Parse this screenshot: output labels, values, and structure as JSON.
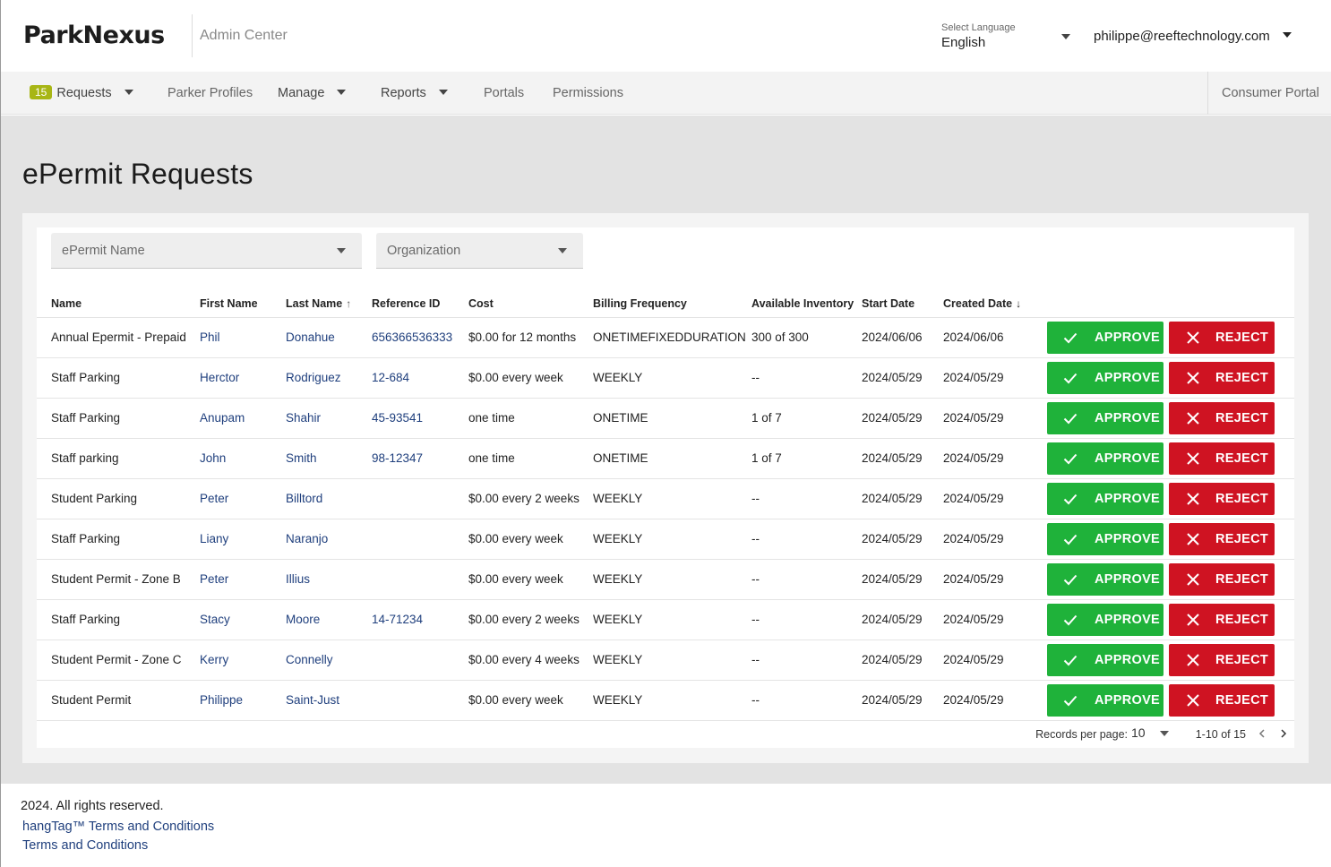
{
  "header": {
    "brand": "ParkNexus",
    "app_name": "Admin Center",
    "language_caption": "Select Language",
    "language_value": "English",
    "user_email": "philippe@reeftechnology.com"
  },
  "nav": {
    "requests_badge": "15",
    "requests": "Requests",
    "parker_profiles": "Parker Profiles",
    "manage": "Manage",
    "reports": "Reports",
    "portals": "Portals",
    "permissions": "Permissions",
    "consumer_portal": "Consumer Portal"
  },
  "page": {
    "title": "ePermit Requests"
  },
  "filters": {
    "epermit_name": "ePermit Name",
    "organization": "Organization"
  },
  "table": {
    "headers": [
      "Name",
      "First Name",
      "Last Name",
      "Reference ID",
      "Cost",
      "Billing Frequency",
      "Available Inventory",
      "Start Date",
      "Created Date"
    ],
    "approve_label": "APPROVE",
    "reject_label": "REJECT",
    "rows": [
      [
        "Annual Epermit - Prepaid",
        "Phil",
        "Donahue",
        "656366536333",
        "$0.00 for 12 months",
        "ONETIMEFIXEDDURATION",
        "300 of 300",
        "2024/06/06",
        "2024/06/06"
      ],
      [
        "Staff Parking",
        "Herctor",
        "Rodriguez",
        "12-684",
        "$0.00 every week",
        "WEEKLY",
        "--",
        "2024/05/29",
        "2024/05/29"
      ],
      [
        "Staff Parking",
        "Anupam",
        "Shahir",
        "45-93541",
        "one time",
        "ONETIME",
        "1 of 7",
        "2024/05/29",
        "2024/05/29"
      ],
      [
        "Staff parking",
        "John",
        "Smith",
        "98-12347",
        "one time",
        "ONETIME",
        "1 of 7",
        "2024/05/29",
        "2024/05/29"
      ],
      [
        "Student Parking",
        "Peter",
        "Billtord",
        "",
        "$0.00 every 2 weeks",
        "WEEKLY",
        "--",
        "2024/05/29",
        "2024/05/29"
      ],
      [
        "Staff Parking",
        "Liany",
        "Naranjo",
        "",
        "$0.00 every week",
        "WEEKLY",
        "--",
        "2024/05/29",
        "2024/05/29"
      ],
      [
        "Student Permit - Zone B",
        "Peter",
        "Illius",
        "",
        "$0.00 every week",
        "WEEKLY",
        "--",
        "2024/05/29",
        "2024/05/29"
      ],
      [
        "Staff Parking",
        "Stacy",
        "Moore",
        "14-71234",
        "$0.00 every 2 weeks",
        "WEEKLY",
        "--",
        "2024/05/29",
        "2024/05/29"
      ],
      [
        "Student Permit - Zone C",
        "Kerry",
        "Connelly",
        "",
        "$0.00 every 4 weeks",
        "WEEKLY",
        "--",
        "2024/05/29",
        "2024/05/29"
      ],
      [
        "Student Permit",
        "Philippe",
        "Saint-Just",
        "",
        "$0.00 every week",
        "WEEKLY",
        "--",
        "2024/05/29",
        "2024/05/29"
      ]
    ]
  },
  "pagination": {
    "records_label": "Records per page:",
    "per_page": "10",
    "range": "1-10 of 15"
  },
  "footer": {
    "copyright": "2024. All rights reserved.",
    "hangtag_terms": "hangTag™ Terms and Conditions",
    "terms": "Terms and Conditions"
  },
  "colors": {
    "approve": "#1fb23a",
    "reject": "#cf1322",
    "badge": "#a8b615",
    "link": "#1f3f7d"
  }
}
